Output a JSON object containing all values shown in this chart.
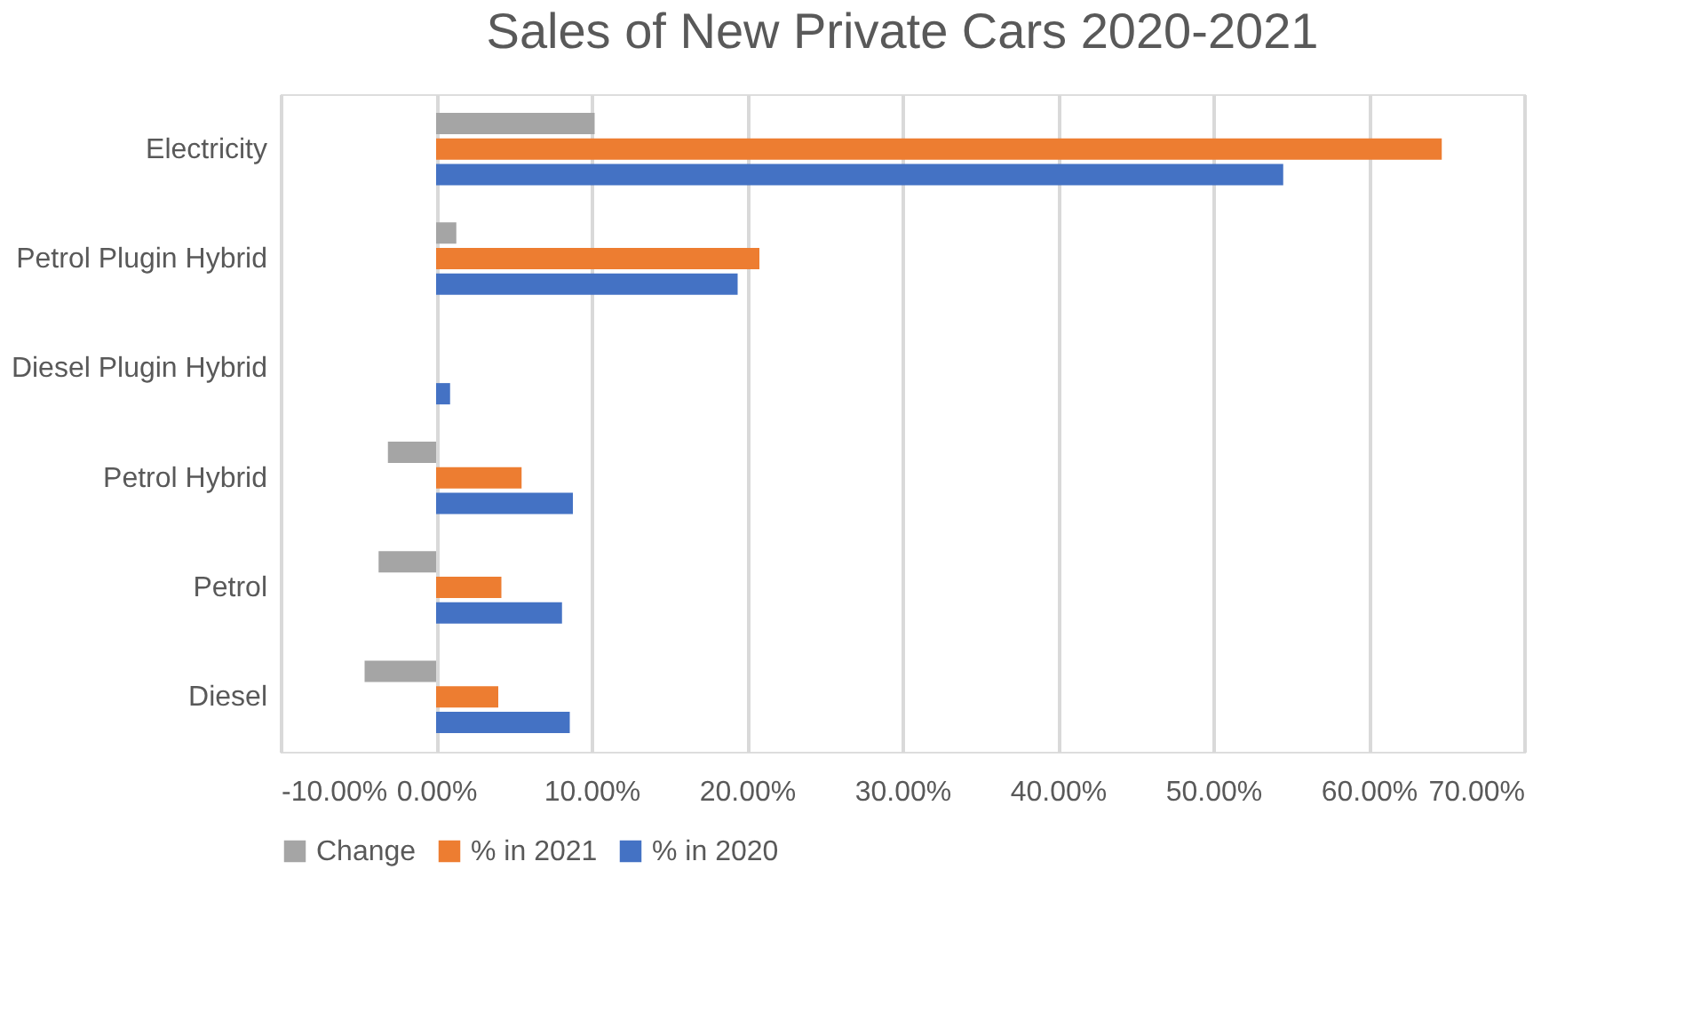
{
  "chart_data": {
    "type": "bar",
    "orientation": "horizontal",
    "title": "Sales of New Private Cars 2020-2021",
    "categories": [
      "Electricity",
      "Petrol Plugin Hybrid",
      "Diesel Plugin Hybrid",
      "Petrol Hybrid",
      "Petrol",
      "Diesel"
    ],
    "series": [
      {
        "name": "Change",
        "color": "#a5a5a5",
        "values": [
          10.2,
          1.3,
          null,
          -3.1,
          -3.7,
          -4.6
        ]
      },
      {
        "name": "% in 2021",
        "color": "#ed7d31",
        "values": [
          64.7,
          20.8,
          null,
          5.5,
          4.2,
          4.0
        ]
      },
      {
        "name": "% in 2020",
        "color": "#4472c4",
        "values": [
          54.5,
          19.4,
          0.9,
          8.8,
          8.1,
          8.6
        ]
      }
    ],
    "xlim": [
      -10,
      70
    ],
    "xticks": [
      {
        "value": -10,
        "label": "-10.00%"
      },
      {
        "value": 0,
        "label": "0.00%"
      },
      {
        "value": 10,
        "label": "10.00%"
      },
      {
        "value": 20,
        "label": "20.00%"
      },
      {
        "value": 30,
        "label": "30.00%"
      },
      {
        "value": 40,
        "label": "40.00%"
      },
      {
        "value": 50,
        "label": "50.00%"
      },
      {
        "value": 60,
        "label": "60.00%"
      },
      {
        "value": 70,
        "label": "70.00%"
      }
    ],
    "grid": "x",
    "legend": "bottom"
  }
}
